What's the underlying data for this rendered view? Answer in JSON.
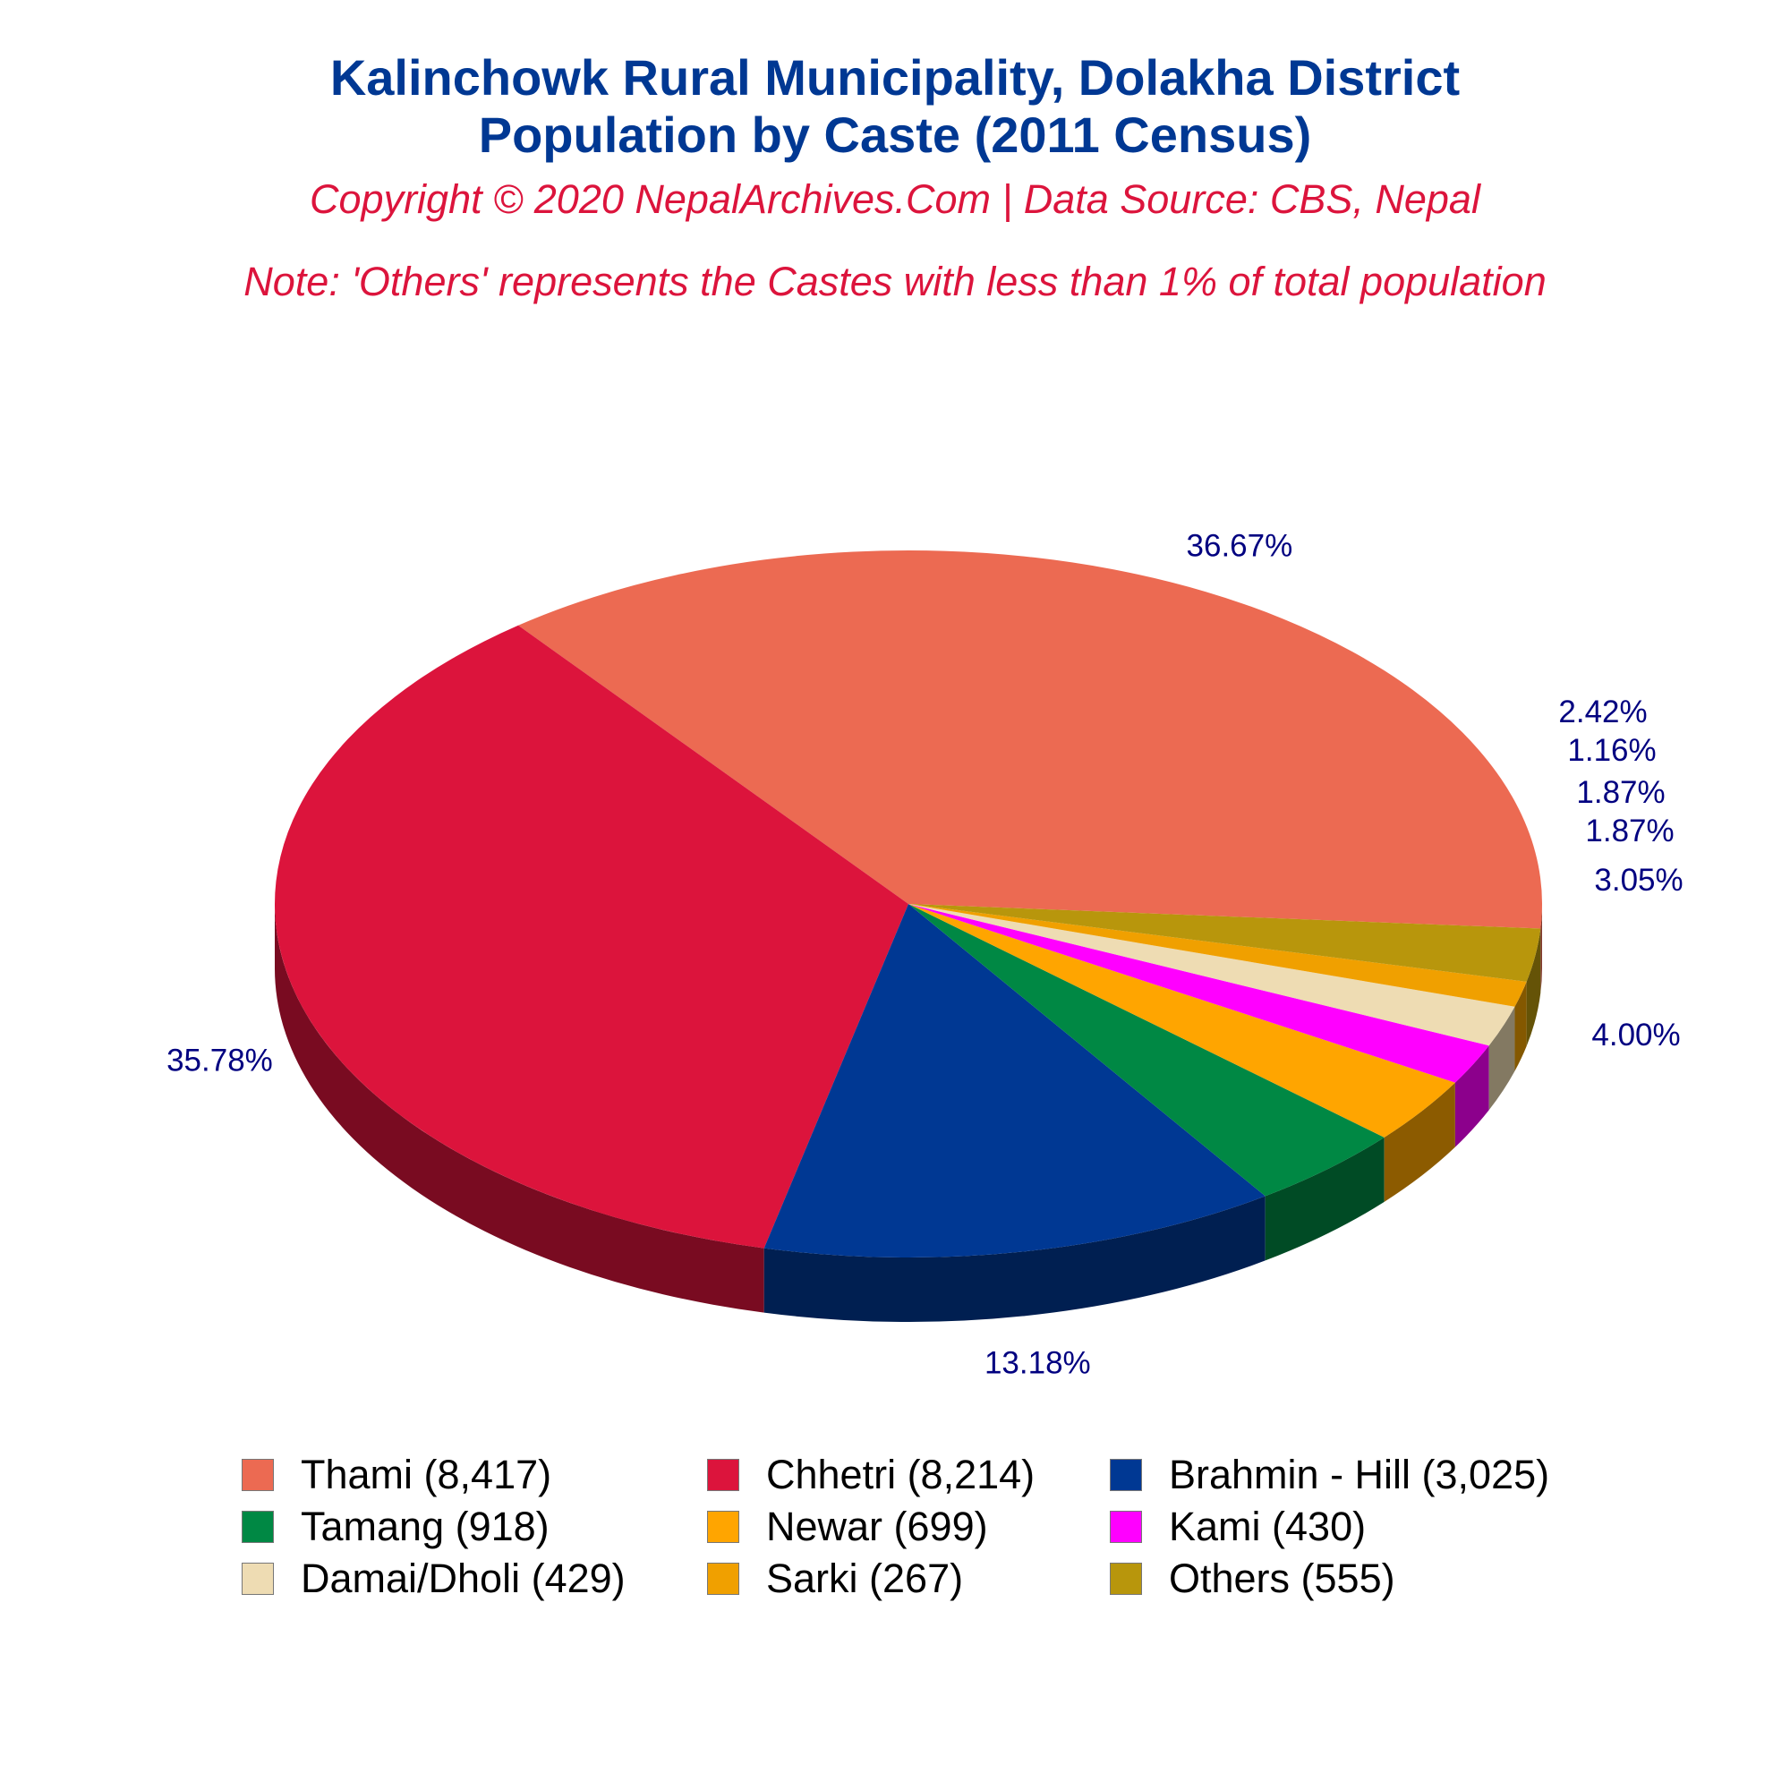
{
  "title_line1": "Kalinchowk Rural Municipality, Dolakha District",
  "title_line2": "Population by Caste (2011 Census)",
  "copyright": "Copyright © 2020 NepalArchives.Com | Data Source: CBS, Nepal",
  "note": "Note: 'Others' represents the Castes with less than 1% of total population",
  "chart_data": {
    "type": "pie",
    "title": "Kalinchowk Rural Municipality, Dolakha District Population by Caste (2011 Census)",
    "slices": [
      {
        "label": "Thami (8,417)",
        "value": 8417,
        "percent_label": "36.67%",
        "color": "#ec6a52"
      },
      {
        "label": "Chhetri (8,214)",
        "value": 8214,
        "percent_label": "35.78%",
        "color": "#dc143c"
      },
      {
        "label": "Brahmin - Hill (3,025)",
        "value": 3025,
        "percent_label": "13.18%",
        "color": "#003893"
      },
      {
        "label": "Tamang (918)",
        "value": 918,
        "percent_label": "4.00%",
        "color": "#008844"
      },
      {
        "label": "Newar (699)",
        "value": 699,
        "percent_label": "3.05%",
        "color": "#ffa500"
      },
      {
        "label": "Kami (430)",
        "value": 430,
        "percent_label": "1.87%",
        "color": "#ff00ff"
      },
      {
        "label": "Damai/Dholi (429)",
        "value": 429,
        "percent_label": "1.87%",
        "color": "#eedcb3"
      },
      {
        "label": "Sarki (267)",
        "value": 267,
        "percent_label": "1.16%",
        "color": "#f0a000"
      },
      {
        "label": "Others (555)",
        "value": 555,
        "percent_label": "2.42%",
        "color": "#b8960c"
      }
    ],
    "label_color": "#000080",
    "legend_placement": "bottom"
  }
}
